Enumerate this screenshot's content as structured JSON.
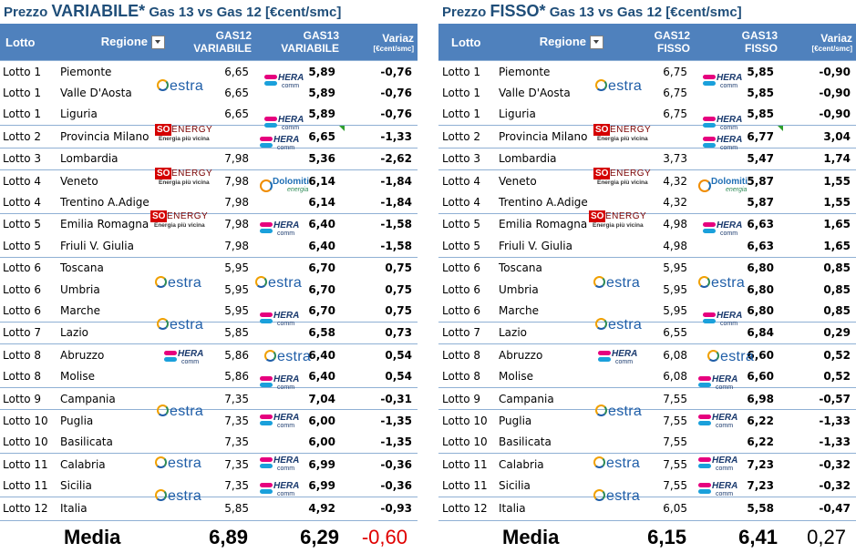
{
  "left": {
    "title_pre": "Prezzo ",
    "title_big": "VARIABILE*",
    "title_post": " Gas 13 vs Gas 12 [€cent/smc]",
    "headers": {
      "lotto": "Lotto",
      "regione": "Regione",
      "gas12_line1": "GAS12",
      "gas12_line2": "VARIABILE",
      "gas13_line1": "GAS13",
      "gas13_line2": "VARIABILE",
      "variaz_line1": "Variaz",
      "variaz_line2": "[€cent/smc]"
    },
    "rows": [
      {
        "lotto": "Lotto 1",
        "regione": "Piemonte",
        "gas12": "6,65",
        "gas13": "5,89",
        "variaz": "-0,76"
      },
      {
        "lotto": "Lotto 1",
        "regione": "Valle D'Aosta",
        "gas12": "6,65",
        "gas13": "5,89",
        "variaz": "-0,76"
      },
      {
        "lotto": "Lotto 1",
        "regione": "Liguria",
        "gas12": "6,65",
        "gas13": "5,89",
        "variaz": "-0,76"
      },
      {
        "lotto": "Lotto 2",
        "regione": "Provincia Milano",
        "gas12": "",
        "gas13": "6,65",
        "variaz": "-1,33"
      },
      {
        "lotto": "Lotto 3",
        "regione": "Lombardia",
        "gas12": "7,98",
        "gas13": "5,36",
        "variaz": "-2,62"
      },
      {
        "lotto": "Lotto 4",
        "regione": "Veneto",
        "gas12": "7,98",
        "gas13": "6,14",
        "variaz": "-1,84"
      },
      {
        "lotto": "Lotto 4",
        "regione": "Trentino A.Adige",
        "gas12": "7,98",
        "gas13": "6,14",
        "variaz": "-1,84"
      },
      {
        "lotto": "Lotto 5",
        "regione": "Emilia Romagna",
        "gas12": "7,98",
        "gas13": "6,40",
        "variaz": "-1,58"
      },
      {
        "lotto": "Lotto 5",
        "regione": "Friuli V. Giulia",
        "gas12": "7,98",
        "gas13": "6,40",
        "variaz": "-1,58"
      },
      {
        "lotto": "Lotto 6",
        "regione": "Toscana",
        "gas12": "5,95",
        "gas13": "6,70",
        "variaz": "0,75"
      },
      {
        "lotto": "Lotto 6",
        "regione": "Umbria",
        "gas12": "5,95",
        "gas13": "6,70",
        "variaz": "0,75"
      },
      {
        "lotto": "Lotto 6",
        "regione": "Marche",
        "gas12": "5,95",
        "gas13": "6,70",
        "variaz": "0,75"
      },
      {
        "lotto": "Lotto 7",
        "regione": "Lazio",
        "gas12": "5,85",
        "gas13": "6,58",
        "variaz": "0,73"
      },
      {
        "lotto": "Lotto 8",
        "regione": "Abruzzo",
        "gas12": "5,86",
        "gas13": "6,40",
        "variaz": "0,54"
      },
      {
        "lotto": "Lotto 8",
        "regione": "Molise",
        "gas12": "5,86",
        "gas13": "6,40",
        "variaz": "0,54"
      },
      {
        "lotto": "Lotto 9",
        "regione": "Campania",
        "gas12": "7,35",
        "gas13": "7,04",
        "variaz": "-0,31"
      },
      {
        "lotto": "Lotto 10",
        "regione": "Puglia",
        "gas12": "7,35",
        "gas13": "6,00",
        "variaz": "-1,35"
      },
      {
        "lotto": "Lotto 10",
        "regione": "Basilicata",
        "gas12": "7,35",
        "gas13": "6,00",
        "variaz": "-1,35"
      },
      {
        "lotto": "Lotto 11",
        "regione": "Calabria",
        "gas12": "7,35",
        "gas13": "6,99",
        "variaz": "-0,36"
      },
      {
        "lotto": "Lotto 11",
        "regione": "Sicilia",
        "gas12": "7,35",
        "gas13": "6,99",
        "variaz": "-0,36"
      },
      {
        "lotto": "Lotto 12",
        "regione": "Italia",
        "gas12": "5,85",
        "gas13": "4,92",
        "variaz": "-0,93"
      }
    ],
    "media": {
      "label": "Media",
      "gas12": "6,89",
      "gas13": "6,29",
      "variaz": "-0,60"
    }
  },
  "right": {
    "title_pre": "Prezzo ",
    "title_big": "FISSO*",
    "title_post": " Gas 13 vs Gas 12 [€cent/smc]",
    "headers": {
      "lotto": "Lotto",
      "regione": "Regione",
      "gas12_line1": "GAS12",
      "gas12_line2": "FISSO",
      "gas13_line1": "GAS13",
      "gas13_line2": "FISSO",
      "variaz_line1": "Variaz",
      "variaz_line2": "[€cent/smc]"
    },
    "rows": [
      {
        "lotto": "Lotto 1",
        "regione": "Piemonte",
        "gas12": "6,75",
        "gas13": "5,85",
        "variaz": "-0,90"
      },
      {
        "lotto": "Lotto 1",
        "regione": "Valle D'Aosta",
        "gas12": "6,75",
        "gas13": "5,85",
        "variaz": "-0,90"
      },
      {
        "lotto": "Lotto 1",
        "regione": "Liguria",
        "gas12": "6,75",
        "gas13": "5,85",
        "variaz": "-0,90"
      },
      {
        "lotto": "Lotto 2",
        "regione": "Provincia Milano",
        "gas12": "",
        "gas13": "6,77",
        "variaz": "3,04"
      },
      {
        "lotto": "Lotto 3",
        "regione": "Lombardia",
        "gas12": "3,73",
        "gas13": "5,47",
        "variaz": "1,74"
      },
      {
        "lotto": "Lotto 4",
        "regione": "Veneto",
        "gas12": "4,32",
        "gas13": "5,87",
        "variaz": "1,55"
      },
      {
        "lotto": "Lotto 4",
        "regione": "Trentino A.Adige",
        "gas12": "4,32",
        "gas13": "5,87",
        "variaz": "1,55"
      },
      {
        "lotto": "Lotto 5",
        "regione": "Emilia Romagna",
        "gas12": "4,98",
        "gas13": "6,63",
        "variaz": "1,65"
      },
      {
        "lotto": "Lotto 5",
        "regione": "Friuli V. Giulia",
        "gas12": "4,98",
        "gas13": "6,63",
        "variaz": "1,65"
      },
      {
        "lotto": "Lotto 6",
        "regione": "Toscana",
        "gas12": "5,95",
        "gas13": "6,80",
        "variaz": "0,85"
      },
      {
        "lotto": "Lotto 6",
        "regione": "Umbria",
        "gas12": "5,95",
        "gas13": "6,80",
        "variaz": "0,85"
      },
      {
        "lotto": "Lotto 6",
        "regione": "Marche",
        "gas12": "5,95",
        "gas13": "6,80",
        "variaz": "0,85"
      },
      {
        "lotto": "Lotto 7",
        "regione": "Lazio",
        "gas12": "6,55",
        "gas13": "6,84",
        "variaz": "0,29"
      },
      {
        "lotto": "Lotto 8",
        "regione": "Abruzzo",
        "gas12": "6,08",
        "gas13": "6,60",
        "variaz": "0,52"
      },
      {
        "lotto": "Lotto 8",
        "regione": "Molise",
        "gas12": "6,08",
        "gas13": "6,60",
        "variaz": "0,52"
      },
      {
        "lotto": "Lotto 9",
        "regione": "Campania",
        "gas12": "7,55",
        "gas13": "6,98",
        "variaz": "-0,57"
      },
      {
        "lotto": "Lotto 10",
        "regione": "Puglia",
        "gas12": "7,55",
        "gas13": "6,22",
        "variaz": "-1,33"
      },
      {
        "lotto": "Lotto 10",
        "regione": "Basilicata",
        "gas12": "7,55",
        "gas13": "6,22",
        "variaz": "-1,33"
      },
      {
        "lotto": "Lotto 11",
        "regione": "Calabria",
        "gas12": "7,55",
        "gas13": "7,23",
        "variaz": "-0,32"
      },
      {
        "lotto": "Lotto 11",
        "regione": "Sicilia",
        "gas12": "7,55",
        "gas13": "7,23",
        "variaz": "-0,32"
      },
      {
        "lotto": "Lotto 12",
        "regione": "Italia",
        "gas12": "6,05",
        "gas13": "5,58",
        "variaz": "-0,47"
      }
    ],
    "media": {
      "label": "Media",
      "gas12": "6,15",
      "gas13": "6,41",
      "variaz": "0,27"
    }
  },
  "logos": {
    "estra_text": "estra",
    "hera_text": "HERA",
    "hera_sub": "comm",
    "soen_mark": "SO",
    "soen_name": "ENERGY",
    "soen_tag": "Energia più vicina",
    "dolomiti_name": "Dolomiti",
    "dolomiti_sub": "energia"
  },
  "colors": {
    "header_bg": "#4f81bd",
    "title_text": "#1f4e79",
    "negative": "#e00000",
    "positive": "#000000",
    "hera_magenta": "#e6007e",
    "hera_cyan": "#1aa0db",
    "estra_blue": "#1f5ea8",
    "soen_red": "#d40000"
  }
}
